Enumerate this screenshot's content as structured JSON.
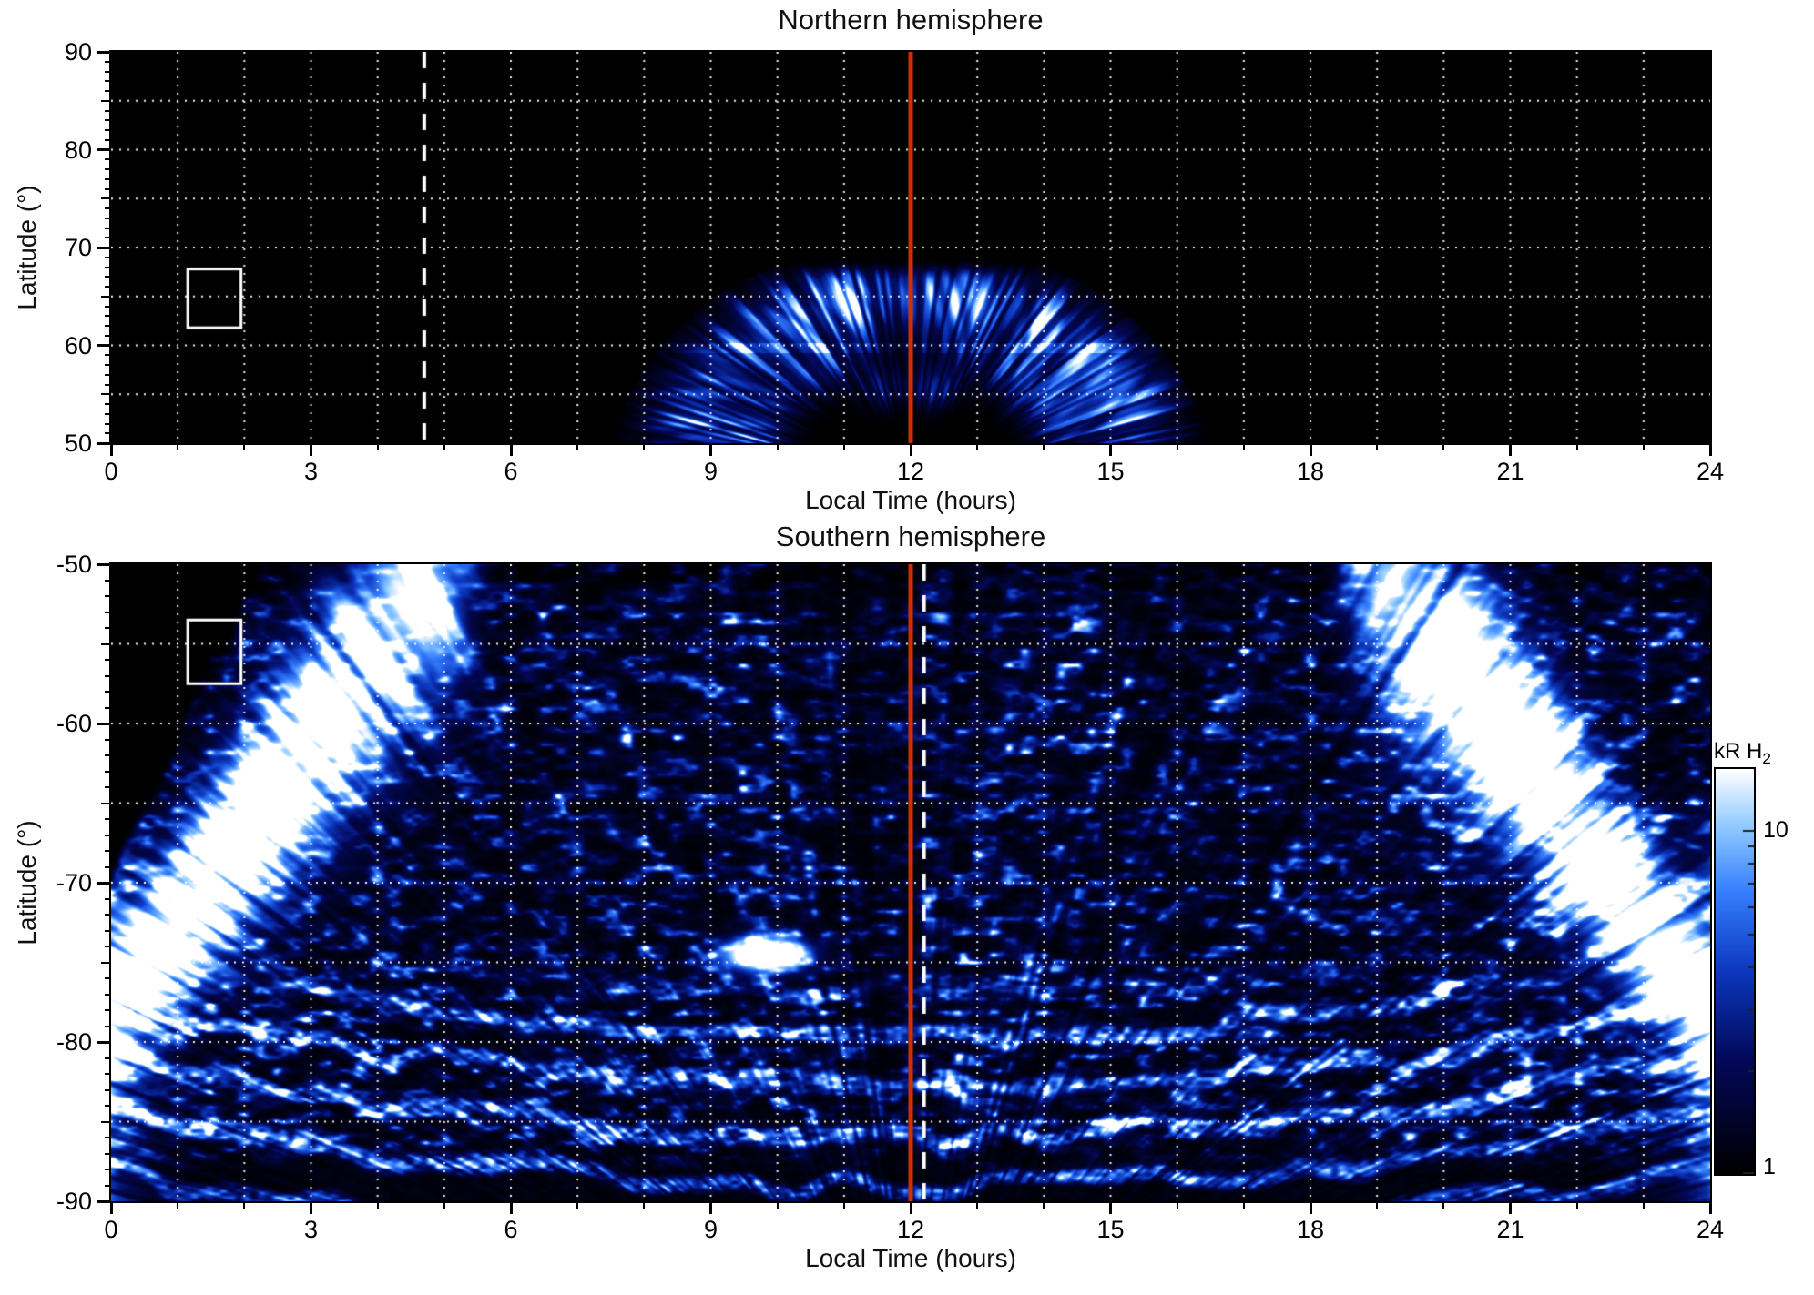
{
  "figure": {
    "background": "#ffffff",
    "text_color": "#000000",
    "grid_color": "#ffffff",
    "colormap_stops": [
      {
        "t": 0.0,
        "rgb": [
          0,
          0,
          0
        ]
      },
      {
        "t": 0.28,
        "rgb": [
          3,
          8,
          88
        ]
      },
      {
        "t": 0.5,
        "rgb": [
          12,
          55,
          190
        ]
      },
      {
        "t": 0.7,
        "rgb": [
          55,
          128,
          255
        ]
      },
      {
        "t": 0.86,
        "rgb": [
          145,
          202,
          255
        ]
      },
      {
        "t": 1.0,
        "rgb": [
          255,
          255,
          255
        ]
      }
    ]
  },
  "chart_data": [
    {
      "type": "heatmap",
      "panel": "north",
      "title": "Northern hemisphere",
      "xlabel": "Local Time (hours)",
      "ylabel": "Latitude (°)",
      "xlim": [
        0,
        24
      ],
      "ylim": [
        50,
        90
      ],
      "xticks": [
        0,
        3,
        6,
        9,
        12,
        15,
        18,
        21,
        24
      ],
      "xtick_labels": [
        "0",
        "3",
        "6",
        "9",
        "12",
        "15",
        "18",
        "21",
        "24"
      ],
      "yticks": [
        90,
        80,
        70,
        60,
        50
      ],
      "ytick_labels": [
        "90",
        "80",
        "70",
        "60",
        "50"
      ],
      "grid": {
        "x_interval_hours": 1,
        "y_interval_deg": 5,
        "style": "dotted"
      },
      "annotations": {
        "noon_line": {
          "x": 12,
          "color": "#cc3300",
          "style": "solid"
        },
        "dashed_line": {
          "x": 4.7,
          "color": "#ffffff",
          "style": "dashed"
        },
        "box": {
          "x": [
            1.15,
            1.95
          ],
          "y": [
            61.8,
            67.8
          ],
          "color": "#ffffff"
        }
      },
      "features": [
        {
          "name": "noon-auroral-oval-segment",
          "description": "streaked crescent of H2 auroral emission centred on local noon, dark interior, bright outer rim",
          "center_lt": 12,
          "center_lat": 46,
          "lt_stretch": 5.5,
          "ring_radius_deg": 19.3,
          "ring_width_deg": 2.6,
          "inner_ring_radius_deg": 13.8,
          "lt_extent": [
            8.1,
            15.9
          ],
          "lat_extent": [
            50,
            68
          ]
        }
      ]
    },
    {
      "type": "heatmap",
      "panel": "south",
      "title": "Southern hemisphere",
      "xlabel": "Local Time (hours)",
      "ylabel": "Latitude (°)",
      "xlim": [
        0,
        24
      ],
      "ylim": [
        -90,
        -50
      ],
      "xticks": [
        0,
        3,
        6,
        9,
        12,
        15,
        18,
        21,
        24
      ],
      "xtick_labels": [
        "0",
        "3",
        "6",
        "9",
        "12",
        "15",
        "18",
        "21",
        "24"
      ],
      "yticks": [
        -50,
        -60,
        -70,
        -80,
        -90
      ],
      "ytick_labels": [
        "-50",
        "-60",
        "-70",
        "-80",
        "-90"
      ],
      "grid": {
        "x_interval_hours": 1,
        "y_interval_deg": 5,
        "style": "dotted"
      },
      "annotations": {
        "noon_line": {
          "x": 12,
          "color": "#cc3300",
          "style": "solid"
        },
        "dashed_line": {
          "x": 12.2,
          "color": "#ffffff",
          "style": "dashed"
        },
        "box": {
          "x": [
            1.15,
            1.95
          ],
          "y": [
            -57.5,
            -53.5
          ],
          "color": "#ffffff"
        }
      },
      "features": [
        {
          "name": "nightside-auroral-oval",
          "ridge_lat_at_midnight": -78,
          "ridge_slope_deg_per_hour": 5.6,
          "ridge_sigma_deg": 3.0,
          "ridge_sigma_growth_per_hour": 0.55,
          "visible_dlt_range": [
            0,
            5.9
          ]
        },
        {
          "name": "polar-speckle-emission",
          "lat_extent": [
            -88,
            -50
          ],
          "lt_extent": [
            0,
            24
          ]
        },
        {
          "name": "polar-arc-banding",
          "center_lt": 12,
          "center_lat": -48,
          "lt_stretch": 1.55,
          "band_spacing_deg": 3.1,
          "lat_extent": [
            -90,
            -76
          ]
        },
        {
          "name": "bright-spot",
          "lt": 9.8,
          "lat": -74.5,
          "sigma_lt": 0.6,
          "sigma_lat": 1.0
        },
        {
          "name": "no-data-wedge-top-left",
          "boundary_lat_at_lt0": -69,
          "boundary_slope_deg_per_hour": 8.5,
          "lt_max": 2.6
        }
      ],
      "colorbar": {
        "label_main": "kR H",
        "label_sub": "2",
        "scale": "log",
        "range": [
          1,
          15
        ],
        "ticks": [
          10,
          1
        ],
        "tick_labels": [
          "10",
          "1"
        ]
      }
    }
  ]
}
